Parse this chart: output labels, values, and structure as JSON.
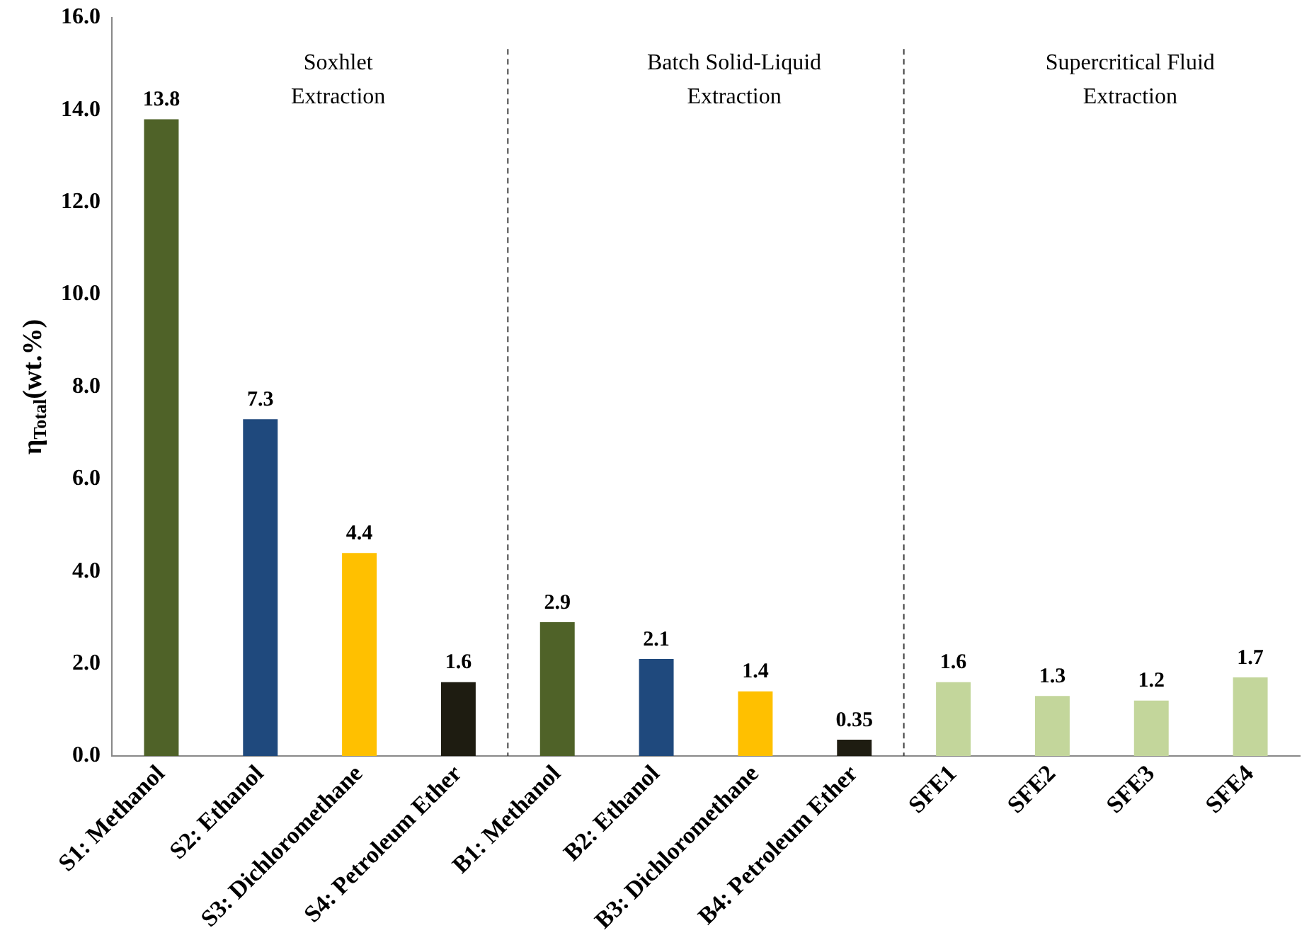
{
  "chart_data": {
    "type": "bar",
    "ylabel": "η$_{Total}$(wt.%)",
    "categories": [
      "S1: Methanol",
      "S2: Ethanol",
      "S3: Dichloromethane",
      "S4: Petroleum Ether",
      "B1: Methanol",
      "B2: Ethanol",
      "B3: Dichloromethane",
      "B4: Petroleum Ether",
      "SFE1",
      "SFE2",
      "SFE3",
      "SFE4"
    ],
    "values": [
      13.8,
      7.3,
      4.4,
      1.6,
      2.9,
      2.1,
      1.4,
      0.35,
      1.6,
      1.3,
      1.2,
      1.7
    ],
    "colors": [
      "#4f6228",
      "#1f497d",
      "#ffc000",
      "#1e1c11",
      "#4f6228",
      "#1f497d",
      "#ffc000",
      "#1e1c11",
      "#c3d69b",
      "#c3d69b",
      "#c3d69b",
      "#c3d69b"
    ],
    "ylim": [
      0,
      16
    ],
    "yticks": [
      {
        "value": 0,
        "label": "0.0"
      },
      {
        "value": 2,
        "label": "2.0"
      },
      {
        "value": 4,
        "label": "4.0"
      },
      {
        "value": 6,
        "label": "6.0"
      },
      {
        "value": 8,
        "label": "8.0"
      },
      {
        "value": 10,
        "label": "10.0"
      },
      {
        "value": 12,
        "label": "12.0"
      },
      {
        "value": 14,
        "label": "14.0"
      },
      {
        "value": 16,
        "label": "16.0"
      }
    ],
    "grid": false,
    "legend": false,
    "data_labels": true,
    "annotations": [
      "Soxhlet\nExtraction",
      "Batch Solid-Liquid\nExtraction",
      "Supercritical Fluid\nExtraction"
    ]
  }
}
